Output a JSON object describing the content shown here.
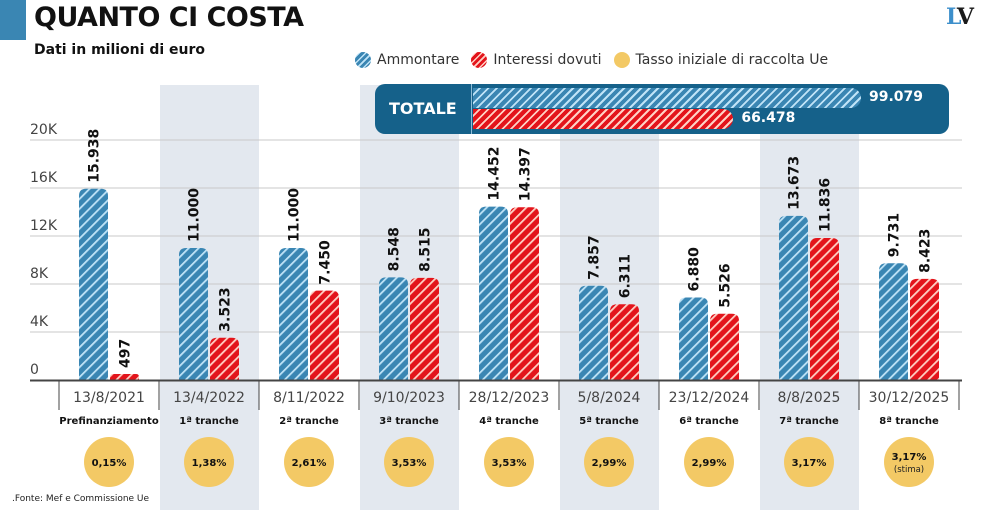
{
  "header": {
    "title": "QUANTO CI COSTA",
    "subtitle": "Dati in milioni di euro",
    "logo_left": "L",
    "logo_right": "V"
  },
  "legend": [
    {
      "label": "Ammontare",
      "icon": "blue-hatched-dot"
    },
    {
      "label": "Interessi dovuti",
      "icon": "red-hatched-dot"
    },
    {
      "label": "Tasso iniziale di raccolta Ue",
      "icon": "yellow-dot"
    }
  ],
  "totals": {
    "label": "TOTALE",
    "ammontare": 99079,
    "ammontare_label": "99.079",
    "interessi": 66478,
    "interessi_label": "66.478"
  },
  "colors": {
    "ammontare": "#3a86b3",
    "interessi": "#e3141b",
    "tasso": "#f3c965",
    "total_box": "#15618a",
    "shade": "#e3e8ef"
  },
  "footer": {
    "source": ".Fonte: Mef e Commissione Ue"
  },
  "chart_data": {
    "type": "bar",
    "title": "QUANTO CI COSTA",
    "subtitle": "Dati in milioni di euro",
    "xlabel": "",
    "ylabel": "",
    "ylim": [
      0,
      20000
    ],
    "yticks": [
      0,
      4000,
      8000,
      12000,
      16000,
      20000
    ],
    "ytick_labels": [
      "0",
      "4K",
      "8K",
      "12K",
      "16K",
      "20K"
    ],
    "grid": true,
    "legend_position": "top-right",
    "categories": [
      "13/8/2021",
      "13/4/2022",
      "8/11/2022",
      "9/10/2023",
      "28/12/2023",
      "5/8/2024",
      "23/12/2024",
      "8/8/2025",
      "30/12/2025"
    ],
    "tranches": [
      "Prefinanziamento",
      "1ª tranche",
      "2ª tranche",
      "3ª tranche",
      "4ª tranche",
      "5ª tranche",
      "6ª tranche",
      "7ª tranche",
      "8ª tranche"
    ],
    "series": [
      {
        "name": "Ammontare",
        "values": [
          15938,
          11000,
          11000,
          8548,
          14452,
          7857,
          6880,
          13673,
          9731
        ],
        "labels": [
          "15.938",
          "11.000",
          "11.000",
          "8.548",
          "14.452",
          "7.857",
          "6.880",
          "13.673",
          "9.731"
        ]
      },
      {
        "name": "Interessi dovuti",
        "values": [
          497,
          3523,
          7450,
          8515,
          14397,
          6311,
          5526,
          11836,
          8423
        ],
        "labels": [
          "497",
          "3.523",
          "7.450",
          "8.515",
          "14.397",
          "6.311",
          "5.526",
          "11.836",
          "8.423"
        ]
      }
    ],
    "rates": [
      {
        "value": "0,15%",
        "note": ""
      },
      {
        "value": "1,38%",
        "note": ""
      },
      {
        "value": "2,61%",
        "note": ""
      },
      {
        "value": "3,53%",
        "note": ""
      },
      {
        "value": "3,53%",
        "note": ""
      },
      {
        "value": "2,99%",
        "note": ""
      },
      {
        "value": "2,99%",
        "note": ""
      },
      {
        "value": "3,17%",
        "note": ""
      },
      {
        "value": "3,17%",
        "note": "(stima)"
      }
    ],
    "shaded_columns": [
      1,
      3,
      5,
      7
    ]
  }
}
